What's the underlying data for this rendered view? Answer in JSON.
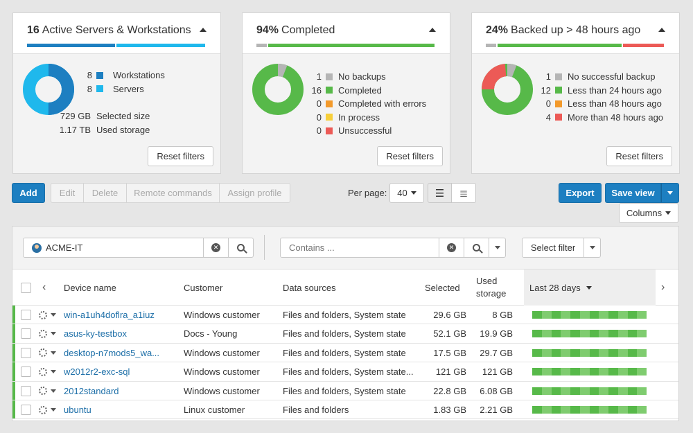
{
  "cards": [
    {
      "title_num": "16",
      "title_text": "Active Servers & Workstations",
      "bar": [
        "#1d7fc1",
        "#1fb8ec"
      ],
      "legend": [
        {
          "num": "8",
          "label": "Workstations",
          "color": "#1d7fc1"
        },
        {
          "num": "8",
          "label": "Servers",
          "color": "#1fb8ec"
        }
      ],
      "extra": [
        {
          "num": "729 GB",
          "label": "Selected size"
        },
        {
          "num": "1.17 TB",
          "label": "Used storage"
        }
      ],
      "reset": "Reset filters"
    },
    {
      "title_num": "94%",
      "title_text": "Completed",
      "legend": [
        {
          "num": "1",
          "label": "No backups",
          "color": "#b5b5b5"
        },
        {
          "num": "16",
          "label": "Completed",
          "color": "#57b949"
        },
        {
          "num": "0",
          "label": "Completed with errors",
          "color": "#f39a2b"
        },
        {
          "num": "0",
          "label": "In process",
          "color": "#f7cf3a"
        },
        {
          "num": "0",
          "label": "Unsuccessful",
          "color": "#ec5a56"
        }
      ],
      "reset": "Reset filters"
    },
    {
      "title_num": "24%",
      "title_text": "Backed up > 48 hours ago",
      "legend": [
        {
          "num": "1",
          "label": "No successful backup",
          "color": "#b5b5b5"
        },
        {
          "num": "12",
          "label": "Less than 24 hours ago",
          "color": "#57b949"
        },
        {
          "num": "0",
          "label": "Less than 48 hours ago",
          "color": "#f39a2b"
        },
        {
          "num": "4",
          "label": "More than 48 hours ago",
          "color": "#ec5a56"
        }
      ],
      "reset": "Reset filters"
    }
  ],
  "toolbar": {
    "add": "Add",
    "edit": "Edit",
    "delete": "Delete",
    "remote": "Remote commands",
    "assign": "Assign profile",
    "per_page_label": "Per page:",
    "per_page_value": "40",
    "export": "Export",
    "save_view": "Save view",
    "columns": "Columns"
  },
  "filters": {
    "customer": "ACME-IT",
    "contains_placeholder": "Contains ...",
    "select_filter": "Select filter"
  },
  "table": {
    "headers": {
      "device": "Device name",
      "customer": "Customer",
      "sources": "Data sources",
      "selected": "Selected",
      "used": "Used storage",
      "last": "Last 28 days"
    },
    "rows": [
      {
        "device": "win-a1uh4doflra_a1iuz",
        "customer": "Windows customer",
        "sources": "Files and folders, System state",
        "selected": "29.6 GB",
        "used": "8 GB"
      },
      {
        "device": "asus-ky-testbox",
        "customer": "Docs - Young",
        "sources": "Files and folders, System state",
        "selected": "52.1 GB",
        "used": "19.9 GB"
      },
      {
        "device": "desktop-n7mods5_wa...",
        "customer": "Windows customer",
        "sources": "Files and folders, System state",
        "selected": "17.5 GB",
        "used": "29.7 GB"
      },
      {
        "device": "w2012r2-exc-sql",
        "customer": "Windows customer",
        "sources": "Files and folders, System state...",
        "selected": "121 GB",
        "used": "121 GB"
      },
      {
        "device": "2012standard",
        "customer": "Windows customer",
        "sources": "Files and folders, System state",
        "selected": "22.8 GB",
        "used": "6.08 GB"
      },
      {
        "device": "ubuntu",
        "customer": "Linux customer",
        "sources": "Files and folders",
        "selected": "1.83 GB",
        "used": "2.21 GB"
      }
    ]
  }
}
